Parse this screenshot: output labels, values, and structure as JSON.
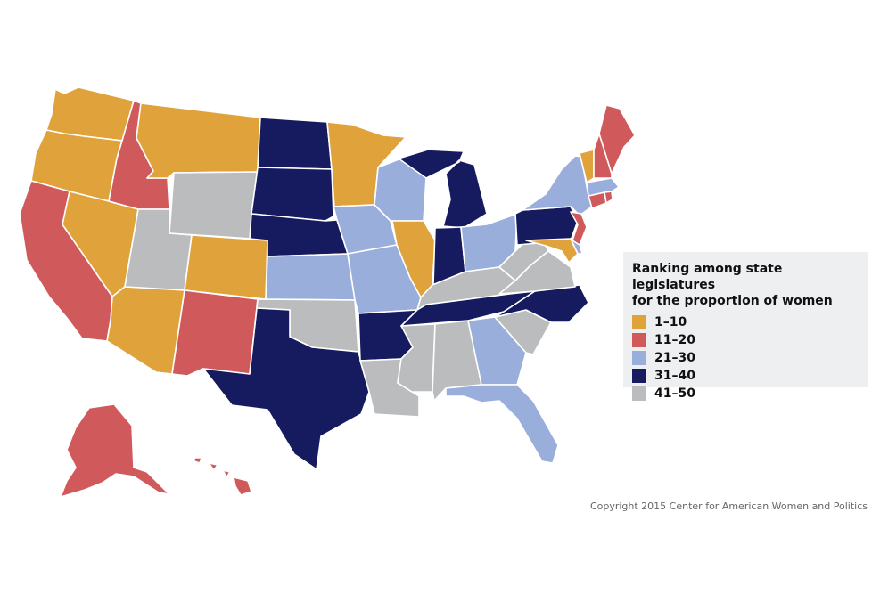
{
  "legend": {
    "title": "Ranking among state legislatures\nfor the proportion of women",
    "items": [
      {
        "label": "1–10",
        "color": "#e0a33b"
      },
      {
        "label": "11–20",
        "color": "#d0595b"
      },
      {
        "label": "21–30",
        "color": "#9aaedb"
      },
      {
        "label": "31–40",
        "color": "#161a5e"
      },
      {
        "label": "41–50",
        "color": "#bbbcbe"
      }
    ]
  },
  "states": {
    "WA": "1–10",
    "OR": "1–10",
    "NV": "1–10",
    "AZ": "1–10",
    "MT": "1–10",
    "CO": "1–10",
    "MN": "1–10",
    "IL": "1–10",
    "VT": "1–10",
    "MD": "1–10",
    "CA": "11–20",
    "ID": "11–20",
    "NM": "11–20",
    "AK": "11–20",
    "HI": "11–20",
    "ME": "11–20",
    "NH": "11–20",
    "CT": "11–20",
    "NJ": "11–20",
    "RI": "11–20",
    "KS": "21–30",
    "IA": "21–30",
    "MO": "21–30",
    "WI": "21–30",
    "OH": "21–30",
    "NY": "21–30",
    "GA": "21–30",
    "FL": "21–30",
    "MA": "21–30",
    "DE": "21–30",
    "ND": "31–40",
    "SD": "31–40",
    "NE": "31–40",
    "TX": "31–40",
    "AR": "31–40",
    "MI": "31–40",
    "IN": "31–40",
    "PA": "31–40",
    "TN": "31–40",
    "NC": "31–40",
    "WY": "41–50",
    "UT": "41–50",
    "OK": "41–50",
    "LA": "41–50",
    "MS": "41–50",
    "AL": "41–50",
    "KY": "41–50",
    "WV": "41–50",
    "VA": "41–50",
    "SC": "41–50"
  },
  "copyright": "Copyright 2015 Center for American Women and Politics"
}
